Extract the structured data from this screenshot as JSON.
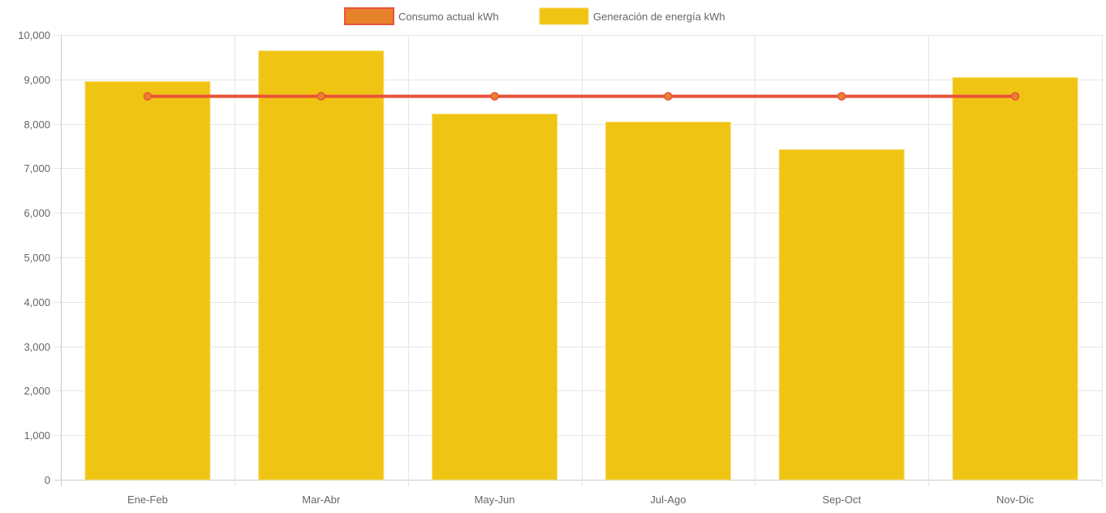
{
  "chart_data": {
    "type": "bar",
    "categories": [
      "Ene-Feb",
      "Mar-Abr",
      "May-Jun",
      "Jul-Ago",
      "Sep-Oct",
      "Nov-Dic"
    ],
    "series": [
      {
        "name": "Consumo actual kWh",
        "type": "line",
        "values": [
          8620,
          8620,
          8620,
          8620,
          8620,
          8620
        ],
        "color": "#e8533a",
        "point_color": "#e8822a"
      },
      {
        "name": "Generación de energía kWh",
        "type": "bar",
        "values": [
          8950,
          9640,
          8220,
          8040,
          7420,
          9040
        ],
        "color": "#f0c412"
      }
    ],
    "title": "",
    "xlabel": "",
    "ylabel": "",
    "ylim": [
      0,
      10000
    ],
    "yticks": [
      "0",
      "1,000",
      "2,000",
      "3,000",
      "4,000",
      "5,000",
      "6,000",
      "7,000",
      "8,000",
      "9,000",
      "10,000"
    ],
    "grid": true,
    "legend": "top-center"
  }
}
